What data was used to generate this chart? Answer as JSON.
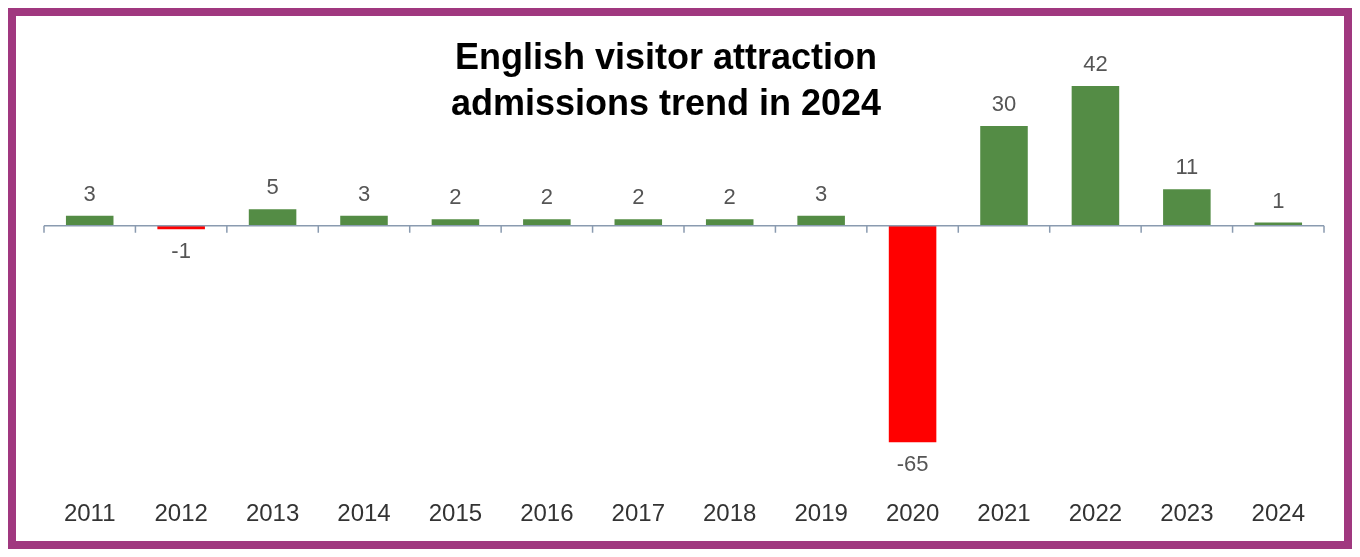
{
  "chart_data": {
    "type": "bar",
    "title": "English visitor attraction admissions trend in 2024",
    "categories": [
      "2011",
      "2012",
      "2013",
      "2014",
      "2015",
      "2016",
      "2017",
      "2018",
      "2019",
      "2020",
      "2021",
      "2022",
      "2023",
      "2024"
    ],
    "values": [
      3,
      -1,
      5,
      3,
      2,
      2,
      2,
      2,
      3,
      -65,
      30,
      42,
      11,
      1
    ],
    "colors": [
      "#548c45",
      "#ff0000",
      "#548c45",
      "#548c45",
      "#548c45",
      "#548c45",
      "#548c45",
      "#548c45",
      "#548c45",
      "#ff0000",
      "#548c45",
      "#548c45",
      "#548c45",
      "#548c45"
    ],
    "data_labels": true,
    "grid": false,
    "legend": false
  }
}
